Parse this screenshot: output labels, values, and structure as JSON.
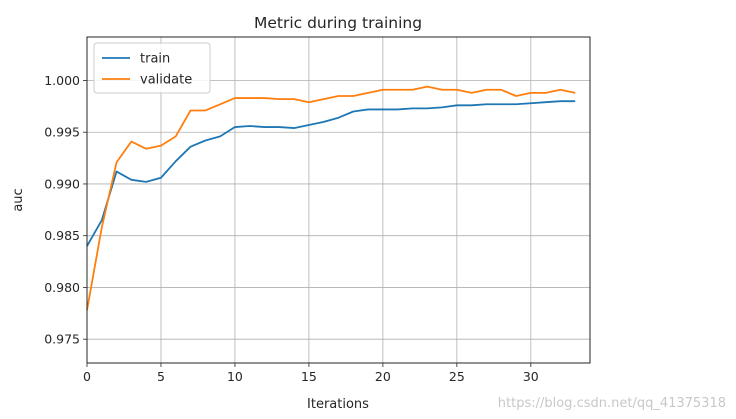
{
  "chart_data": {
    "type": "line",
    "title": "Metric during training",
    "xlabel": "Iterations",
    "ylabel": "auc",
    "xlim": [
      0,
      34
    ],
    "ylim": [
      0.9727,
      1.0042
    ],
    "xticks": [
      0,
      5,
      10,
      15,
      20,
      25,
      30
    ],
    "xtick_labels": [
      "0",
      "5",
      "10",
      "15",
      "20",
      "25",
      "30"
    ],
    "yticks": [
      0.975,
      0.98,
      0.985,
      0.99,
      0.995,
      1.0
    ],
    "ytick_labels": [
      "0.975",
      "0.980",
      "0.985",
      "0.990",
      "0.995",
      "1.000"
    ],
    "grid": true,
    "legend_position": "top-left",
    "x": [
      0,
      1,
      2,
      3,
      4,
      5,
      6,
      7,
      8,
      9,
      10,
      11,
      12,
      13,
      14,
      15,
      16,
      17,
      18,
      19,
      20,
      21,
      22,
      23,
      24,
      25,
      26,
      27,
      28,
      29,
      30,
      31,
      32,
      33
    ],
    "series": [
      {
        "name": "train",
        "color": "#1f77b4",
        "values": [
          0.984,
          0.9865,
          0.9912,
          0.9904,
          0.9902,
          0.9906,
          0.9922,
          0.9936,
          0.9942,
          0.9946,
          0.9955,
          0.9956,
          0.9955,
          0.9955,
          0.9954,
          0.9957,
          0.996,
          0.9964,
          0.997,
          0.9972,
          0.9972,
          0.9972,
          0.9973,
          0.9973,
          0.9974,
          0.9976,
          0.9976,
          0.9977,
          0.9977,
          0.9977,
          0.9978,
          0.9979,
          0.998,
          0.998
        ]
      },
      {
        "name": "validate",
        "color": "#ff7f0e",
        "values": [
          0.9778,
          0.9858,
          0.9921,
          0.9941,
          0.9934,
          0.9937,
          0.9946,
          0.9971,
          0.9971,
          0.9977,
          0.9983,
          0.9983,
          0.9983,
          0.9982,
          0.9982,
          0.9979,
          0.9982,
          0.9985,
          0.9985,
          0.9988,
          0.9991,
          0.9991,
          0.9991,
          0.9994,
          0.9991,
          0.9991,
          0.9988,
          0.9991,
          0.9991,
          0.9985,
          0.9988,
          0.9988,
          0.9991,
          0.9988
        ]
      }
    ]
  },
  "watermark": "https://blog.csdn.net/qq_41375318"
}
